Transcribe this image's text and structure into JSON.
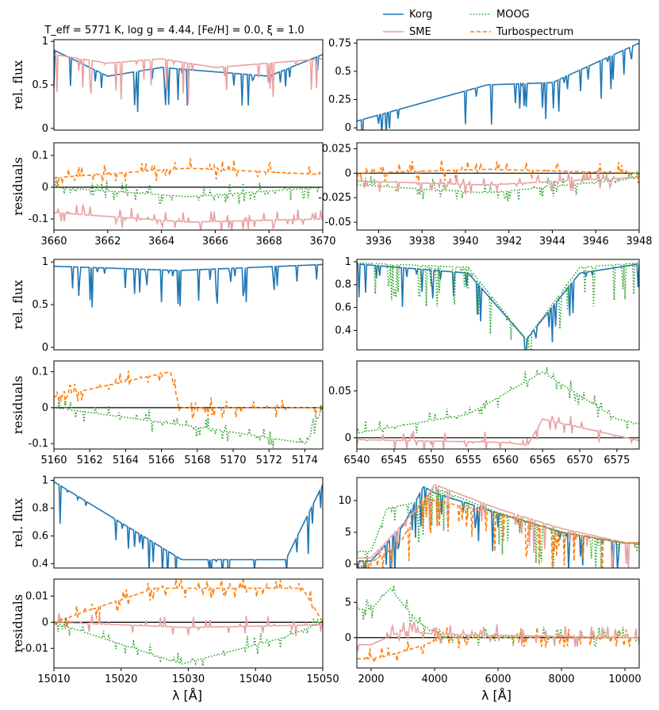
{
  "title": "T_eff = 5771 K, log g = 4.44, [Fe/H] = 0.0, ξ = 1.0",
  "legend": {
    "placement": "top-right, above plots",
    "entries": [
      {
        "name": "Korg",
        "color": "#1f77b4",
        "style": "solid"
      },
      {
        "name": "SME",
        "color": "#e9a1a1",
        "style": "solid"
      },
      {
        "name": "MOOG",
        "color": "#2ca02c",
        "style": "dotted"
      },
      {
        "name": "Turbospectrum",
        "color": "#ff7f0e",
        "style": "dashed"
      }
    ]
  },
  "x_axis_label": "λ [Å]",
  "flux_label": "rel. flux",
  "residual_label": "residuals",
  "chart_data": [
    {
      "panel": "A",
      "type": "line",
      "quantity": "rel. flux",
      "xlim": [
        3660,
        3670
      ],
      "ylim": [
        -0.02,
        1.02
      ],
      "xticks": [],
      "yticks": [
        0.0,
        0.5,
        1.0
      ],
      "series": [
        {
          "name": "Korg",
          "x": [
            3660,
            3662,
            3664,
            3666,
            3668,
            3670
          ],
          "values": [
            0.9,
            0.6,
            0.7,
            0.65,
            0.6,
            0.85
          ]
        },
        {
          "name": "SME",
          "x": [
            3660,
            3662,
            3664,
            3666,
            3668,
            3670
          ],
          "values": [
            0.85,
            0.75,
            0.8,
            0.7,
            0.75,
            0.8
          ]
        }
      ]
    },
    {
      "panel": "A-res",
      "type": "line",
      "quantity": "residuals",
      "xlim": [
        3660,
        3670
      ],
      "ylim": [
        -0.135,
        0.14
      ],
      "xticks": [
        3660,
        3662,
        3664,
        3666,
        3668,
        3670
      ],
      "yticks": [
        -0.1,
        0.0,
        0.1
      ],
      "series": [
        {
          "name": "MOOG",
          "x": [
            3660,
            3665,
            3670
          ],
          "values": [
            0.0,
            -0.03,
            0.0
          ]
        },
        {
          "name": "Turbospectrum",
          "x": [
            3660,
            3665,
            3670
          ],
          "values": [
            0.03,
            0.06,
            0.04
          ]
        },
        {
          "name": "SME",
          "x": [
            3660,
            3665,
            3670
          ],
          "values": [
            -0.08,
            -0.11,
            -0.1
          ]
        }
      ]
    },
    {
      "panel": "B",
      "type": "line",
      "quantity": "rel. flux",
      "xlim": [
        3935,
        3948
      ],
      "ylim": [
        -0.02,
        0.78
      ],
      "xticks": [],
      "yticks": [
        0.0,
        0.25,
        0.5,
        0.75
      ],
      "series": [
        {
          "name": "Korg",
          "x": [
            3935,
            3941,
            3944,
            3948
          ],
          "values": [
            0.06,
            0.38,
            0.4,
            0.75
          ]
        }
      ]
    },
    {
      "panel": "B-res",
      "type": "line",
      "quantity": "residuals",
      "xlim": [
        3935,
        3948
      ],
      "ylim": [
        -0.058,
        0.031
      ],
      "xticks": [
        3936,
        3938,
        3940,
        3942,
        3944,
        3946,
        3948
      ],
      "yticks": [
        -0.05,
        -0.025,
        0.0,
        0.025
      ],
      "series": [
        {
          "name": "MOOG",
          "x": [
            3935,
            3941,
            3948
          ],
          "values": [
            -0.012,
            -0.02,
            -0.005
          ]
        },
        {
          "name": "Turbospectrum",
          "x": [
            3935,
            3941,
            3948
          ],
          "values": [
            0.0,
            0.004,
            0.0
          ]
        },
        {
          "name": "SME",
          "x": [
            3935,
            3941,
            3948
          ],
          "values": [
            -0.008,
            -0.012,
            -0.004
          ]
        }
      ]
    },
    {
      "panel": "C",
      "type": "line",
      "quantity": "rel. flux",
      "xlim": [
        5160,
        5175
      ],
      "ylim": [
        -0.03,
        1.03
      ],
      "xticks": [],
      "yticks": [
        0.0,
        0.5,
        1.0
      ],
      "series": [
        {
          "name": "Korg",
          "x": [
            5160,
            5167,
            5175
          ],
          "values": [
            0.95,
            0.9,
            0.97
          ]
        }
      ]
    },
    {
      "panel": "C-res",
      "type": "line",
      "quantity": "residuals",
      "xlim": [
        5160,
        5175
      ],
      "ylim": [
        -0.115,
        0.13
      ],
      "xticks": [
        5160,
        5162,
        5164,
        5166,
        5168,
        5170,
        5172,
        5174
      ],
      "yticks": [
        -0.1,
        0.0,
        0.1
      ],
      "series": [
        {
          "name": "Turbospectrum",
          "x": [
            5160,
            5166.5,
            5167,
            5175
          ],
          "values": [
            0.03,
            0.1,
            0.0,
            0.0
          ]
        },
        {
          "name": "MOOG",
          "x": [
            5160,
            5168.9,
            5174.1,
            5175
          ],
          "values": [
            0.0,
            -0.06,
            -0.1,
            0.0
          ]
        }
      ]
    },
    {
      "panel": "D",
      "type": "line",
      "quantity": "rel. flux",
      "xlim": [
        6540,
        6578
      ],
      "ylim": [
        0.23,
        1.02
      ],
      "xticks": [],
      "yticks": [
        0.4,
        0.6,
        0.8,
        1.0
      ],
      "series": [
        {
          "name": "Korg",
          "x": [
            6540,
            6555,
            6562.8,
            6570,
            6578
          ],
          "values": [
            0.98,
            0.9,
            0.32,
            0.9,
            0.98
          ]
        },
        {
          "name": "MOOG",
          "x": [
            6540,
            6555,
            6562.8,
            6570,
            6578
          ],
          "values": [
            0.99,
            0.95,
            0.32,
            0.95,
            0.99
          ]
        }
      ]
    },
    {
      "panel": "D-res",
      "type": "line",
      "quantity": "residuals",
      "xlim": [
        6540,
        6578
      ],
      "ylim": [
        -0.012,
        0.082
      ],
      "xticks": [
        6540,
        6545,
        6550,
        6555,
        6560,
        6565,
        6570,
        6575
      ],
      "yticks": [
        0.0,
        0.05
      ],
      "series": [
        {
          "name": "MOOG",
          "x": [
            6540,
            6555,
            6565,
            6575,
            6578
          ],
          "values": [
            0.005,
            0.025,
            0.07,
            0.02,
            0.015
          ]
        },
        {
          "name": "SME",
          "x": [
            6540,
            6560,
            6563,
            6565,
            6578
          ],
          "values": [
            -0.002,
            -0.005,
            -0.008,
            0.02,
            -0.003
          ]
        }
      ]
    },
    {
      "panel": "E",
      "type": "line",
      "quantity": "rel. flux",
      "xlim": [
        15010,
        15050
      ],
      "ylim": [
        0.37,
        1.02
      ],
      "xticks": [],
      "yticks": [
        0.4,
        0.6,
        0.8,
        1.0
      ],
      "series": [
        {
          "name": "Korg",
          "x": [
            15010,
            15029,
            15044.5,
            15050
          ],
          "values": [
            0.99,
            0.43,
            0.43,
            0.97
          ]
        }
      ]
    },
    {
      "panel": "E-res",
      "type": "line",
      "quantity": "residuals",
      "xlim": [
        15010,
        15050
      ],
      "ylim": [
        -0.0175,
        0.0165
      ],
      "xticks": [
        15010,
        15020,
        15030,
        15040,
        15050
      ],
      "yticks": [
        -0.01,
        0.0,
        0.01
      ],
      "series": [
        {
          "name": "SME",
          "x": [
            15010,
            15030,
            15050
          ],
          "values": [
            0.0,
            -0.002,
            -0.001
          ]
        },
        {
          "name": "Turbospectrum",
          "x": [
            15010,
            15025,
            15047,
            15050
          ],
          "values": [
            0.0,
            0.013,
            0.013,
            0.0
          ]
        },
        {
          "name": "MOOG",
          "x": [
            15010,
            15029,
            15044,
            15050
          ],
          "values": [
            0.0,
            -0.016,
            -0.006,
            0.0
          ]
        }
      ]
    },
    {
      "panel": "F",
      "type": "line",
      "quantity": "rel. flux",
      "xlim": [
        1550,
        10450
      ],
      "ylim": [
        -0.6,
        13.6
      ],
      "xticks": [],
      "yticks": [
        0,
        5,
        10
      ],
      "series": [
        {
          "name": "Korg",
          "x": [
            2000,
            3000,
            3650,
            4000,
            6000,
            8000,
            10000
          ],
          "values": [
            0.5,
            6.0,
            12.2,
            11.2,
            8.0,
            5.0,
            3.3
          ]
        },
        {
          "name": "SME",
          "x": [
            2000,
            3650,
            4000,
            6000,
            8000,
            10000
          ],
          "values": [
            1.0,
            9.8,
            12.5,
            8.7,
            5.6,
            3.4
          ]
        },
        {
          "name": "MOOG",
          "x": [
            2000,
            2500,
            3650,
            4000,
            6000,
            8000,
            10000
          ],
          "values": [
            2.0,
            8.8,
            9.9,
            12.0,
            8.1,
            5.1,
            3.3
          ]
        },
        {
          "name": "Turbospectrum",
          "x": [
            2000,
            3000,
            3650,
            4000,
            6000,
            8000,
            10000
          ],
          "values": [
            0.2,
            4.0,
            10.5,
            10.0,
            8.0,
            5.0,
            3.3
          ]
        }
      ]
    },
    {
      "panel": "F-res",
      "type": "line",
      "quantity": "residuals",
      "xlim": [
        1550,
        10450
      ],
      "ylim": [
        -4.3,
        8.3
      ],
      "xticks": [
        2000,
        4000,
        6000,
        8000,
        10000
      ],
      "yticks": [
        0,
        5
      ],
      "series": [
        {
          "name": "MOOG",
          "x": [
            2000,
            2600,
            3500,
            4300,
            10000
          ],
          "values": [
            4.0,
            7.0,
            2.0,
            0.2,
            0.0
          ]
        },
        {
          "name": "Turbospectrum",
          "x": [
            2000,
            2600,
            3700,
            4300,
            10000
          ],
          "values": [
            -3.0,
            -2.5,
            -1.0,
            0.0,
            0.0
          ]
        },
        {
          "name": "SME",
          "x": [
            2000,
            3000,
            4000,
            10000
          ],
          "values": [
            -1.0,
            1.0,
            0.5,
            0.0
          ]
        }
      ]
    }
  ]
}
